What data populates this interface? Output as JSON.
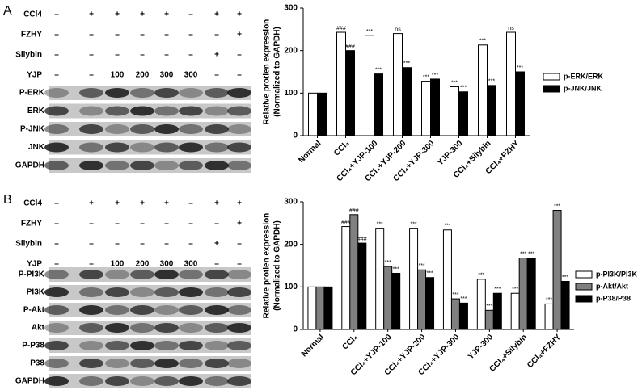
{
  "chart_data": [
    {
      "type": "bar",
      "ylabel": [
        "Relative protien expression",
        "(Normalized to GAPDH)"
      ],
      "categories": [
        "Normal",
        "CCl₄",
        "CCl₄+YJP-100",
        "CCl₄+YJP-200",
        "CCl₄+YJP-300",
        "YJP-300",
        "CCl₄+Silybin",
        "CCl₄+FZHY"
      ],
      "series": [
        {
          "name": "p-ERK/ERK",
          "color": "#ffffff",
          "values": [
            100,
            243,
            235,
            240,
            128,
            115,
            213,
            243
          ],
          "annotations": [
            null,
            "###",
            "***",
            "ns",
            "***",
            "***",
            "***",
            "ns"
          ]
        },
        {
          "name": "p-JNK/JNK",
          "color": "#000000",
          "values": [
            100,
            200,
            145,
            160,
            133,
            103,
            118,
            150
          ],
          "annotations": [
            null,
            "###",
            "***",
            "***",
            "***",
            "***",
            "***",
            "***"
          ]
        }
      ],
      "ylim": [
        0,
        300
      ],
      "yticks": [
        0,
        100,
        200,
        300
      ]
    },
    {
      "type": "bar",
      "ylabel": [
        "Relative protien expression",
        "(Normalized to GAPDH)"
      ],
      "categories": [
        "Normal",
        "CCl₄",
        "CCl₄+YJP-100",
        "CCl₄+YJP-200",
        "CCl₄+YJP-300",
        "YJP-300",
        "CCl₄+Silybin",
        "CCl₄+FZHY"
      ],
      "series": [
        {
          "name": "p-PI3K/PI3K",
          "color": "#ffffff",
          "values": [
            100,
            242,
            238,
            238,
            234,
            118,
            85,
            60
          ],
          "annotations": [
            null,
            "###",
            "***",
            "***",
            "***",
            "***",
            "***",
            "***"
          ]
        },
        {
          "name": "p-Akt/Akt",
          "color": "#808080",
          "values": [
            100,
            270,
            148,
            140,
            72,
            45,
            168,
            280
          ],
          "annotations": [
            null,
            "###",
            "***",
            "***",
            "***",
            "***",
            "***",
            "***"
          ]
        },
        {
          "name": "p-P38/P38",
          "color": "#000000",
          "values": [
            100,
            203,
            132,
            122,
            62,
            85,
            168,
            113
          ],
          "annotations": [
            null,
            "###",
            "***",
            "***",
            "***",
            "***",
            "***",
            "***"
          ]
        }
      ],
      "ylim": [
        0,
        300
      ],
      "yticks": [
        0,
        100,
        200,
        300
      ]
    }
  ],
  "blots": [
    {
      "panel": "A",
      "treatments": [
        {
          "label": "CCl4",
          "lanes": [
            "–",
            "+",
            "+",
            "+",
            "+",
            "–",
            "+",
            "+"
          ]
        },
        {
          "label": "FZHY",
          "lanes": [
            "–",
            "–",
            "–",
            "–",
            "–",
            "–",
            "–",
            "+"
          ]
        },
        {
          "label": "Silybin",
          "lanes": [
            "–",
            "–",
            "–",
            "–",
            "–",
            "–",
            "+",
            "–"
          ]
        },
        {
          "label": "YJP",
          "lanes": [
            "–",
            "–",
            "100",
            "200",
            "300",
            "300",
            "–",
            "–"
          ]
        }
      ],
      "bands": [
        "P-ERK",
        "ERK",
        "P-JNK",
        "JNK",
        "GAPDH"
      ]
    },
    {
      "panel": "B",
      "treatments": [
        {
          "label": "CCl4",
          "lanes": [
            "–",
            "+",
            "+",
            "+",
            "+",
            "–",
            "+",
            "+"
          ]
        },
        {
          "label": "FZHY",
          "lanes": [
            "–",
            "–",
            "–",
            "–",
            "–",
            "–",
            "–",
            "+"
          ]
        },
        {
          "label": "Silybin",
          "lanes": [
            "–",
            "–",
            "–",
            "–",
            "–",
            "–",
            "+",
            "–"
          ]
        },
        {
          "label": "YJP",
          "lanes": [
            "–",
            "–",
            "100",
            "200",
            "300",
            "300",
            "–",
            "–"
          ]
        }
      ],
      "bands": [
        "P-PI3K",
        "PI3K",
        "P-Akt",
        "Akt",
        "P-P38",
        "P38",
        "GAPDH"
      ]
    }
  ]
}
